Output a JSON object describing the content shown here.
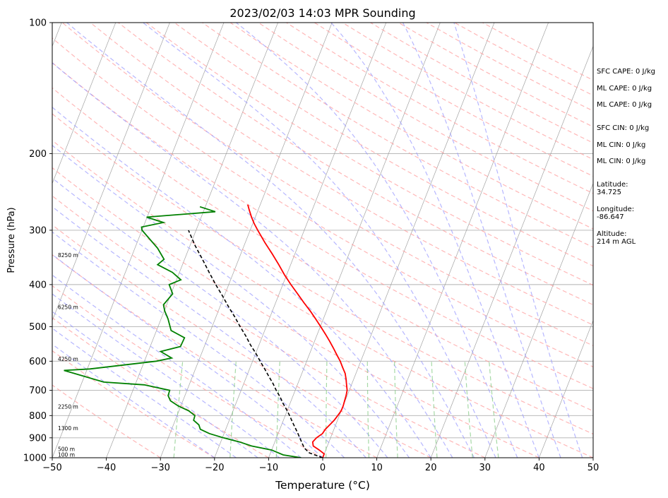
{
  "chart_data": {
    "type": "skewt",
    "title": "2023/02/03 14:03 MPR Sounding",
    "xlabel": "Temperature (°C)",
    "ylabel": "Pressure (hPa)",
    "xlim": [
      -50,
      50
    ],
    "ylim": [
      1000,
      100
    ],
    "y_scale": "log",
    "x_ticks": [
      -50,
      -40,
      -30,
      -20,
      -10,
      0,
      10,
      20,
      30,
      40,
      50
    ],
    "y_ticks": [
      100,
      200,
      300,
      400,
      500,
      600,
      700,
      800,
      900,
      1000
    ],
    "grid": "horizontal at pressure ticks",
    "colors": {
      "temperature": "#ff0000",
      "dewpoint": "#008000",
      "parcel": "#000000",
      "dry_adiabats": "#ff9999",
      "moist_adiabats": "#9999ff",
      "mixing_ratio": "#88cc88",
      "isotherms": "#999999"
    },
    "series": [
      {
        "key": "temperature",
        "p": [
          1000,
          980,
          960,
          940,
          920,
          900,
          880,
          860,
          840,
          820,
          800,
          780,
          760,
          740,
          720,
          700,
          680,
          660,
          640,
          620,
          600,
          580,
          560,
          540,
          520,
          500,
          480,
          460,
          440,
          420,
          400,
          380,
          360,
          340,
          320,
          300,
          290,
          280,
          270,
          262
        ],
        "t": [
          0.0,
          0.0,
          -1.2,
          -2.6,
          -3.0,
          -2.6,
          -1.8,
          -1.6,
          -1.1,
          -0.6,
          -0.3,
          0.0,
          0.0,
          -0.1,
          -0.2,
          -0.4,
          -0.9,
          -1.4,
          -2.0,
          -2.9,
          -3.8,
          -4.9,
          -6.0,
          -7.2,
          -8.5,
          -9.9,
          -11.4,
          -13.0,
          -14.8,
          -16.6,
          -18.5,
          -20.4,
          -22.2,
          -24.2,
          -26.4,
          -28.6,
          -29.7,
          -30.7,
          -31.6,
          -32.3
        ]
      },
      {
        "key": "dewpoint",
        "p": [
          1000,
          985,
          960,
          940,
          920,
          900,
          880,
          860,
          840,
          820,
          800,
          780,
          760,
          740,
          720,
          700,
          680,
          670,
          630,
          625,
          600,
          590,
          570,
          555,
          530,
          510,
          480,
          460,
          445,
          420,
          400,
          390,
          375,
          360,
          350,
          330,
          300,
          295,
          288,
          280,
          272,
          265
        ],
        "t": [
          -4.0,
          -7.5,
          -10.0,
          -14.0,
          -16.5,
          -19.8,
          -22.7,
          -24.7,
          -25.3,
          -26.6,
          -26.7,
          -28.2,
          -30.5,
          -32.3,
          -33.1,
          -33.2,
          -38.3,
          -46.0,
          -54.2,
          -49.5,
          -37.8,
          -35.2,
          -37.7,
          -34.4,
          -34.3,
          -37.3,
          -38.7,
          -39.9,
          -40.6,
          -39.7,
          -41.0,
          -39.2,
          -41.3,
          -44.6,
          -43.8,
          -45.8,
          -50.0,
          -50.3,
          -46.6,
          -50.1,
          -37.8,
          -41.0
        ]
      },
      {
        "key": "parcel",
        "p": [
          1000,
          975,
          950,
          925,
          900,
          875,
          850,
          825,
          800,
          775,
          750,
          725,
          700,
          675,
          650,
          625,
          600,
          575,
          550,
          525,
          500,
          475,
          450,
          425,
          400,
          375,
          350,
          325,
          300
        ],
        "t": [
          0.0,
          -2.8,
          -4.1,
          -4.9,
          -5.7,
          -6.5,
          -7.4,
          -8.3,
          -9.2,
          -10.2,
          -11.3,
          -12.3,
          -13.5,
          -14.6,
          -15.9,
          -17.2,
          -18.6,
          -20.0,
          -21.6,
          -23.1,
          -24.8,
          -26.5,
          -28.4,
          -30.3,
          -32.4,
          -34.5,
          -36.7,
          -39.1,
          -41.4
        ]
      }
    ],
    "height_labels": [
      {
        "p": 1000,
        "text": "100 m"
      },
      {
        "p": 970,
        "text": "500 m"
      },
      {
        "p": 869,
        "text": "1300 m"
      },
      {
        "p": 776,
        "text": "2250 m"
      },
      {
        "p": 603,
        "text": "4250 m"
      },
      {
        "p": 458,
        "text": "6250 m"
      },
      {
        "p": 348,
        "text": "8250 m"
      }
    ]
  },
  "info": {
    "sfc_cape": "SFC CAPE: 0 J/kg",
    "ml_cape": "ML CAPE: 0 J/kg",
    "mu_cape": "ML CAPE: 0 J/kg",
    "sfc_cin": "SFC CIN: 0 J/kg",
    "ml_cin": "ML CIN: 0 J/kg",
    "mu_cin": "ML CIN: 0 J/kg",
    "latitude_label": "Latitude:",
    "latitude_value": "34.725",
    "longitude_label": "Longitude:",
    "longitude_value": "-86.647",
    "altitude_label": "Altitude:",
    "altitude_value": "214 m AGL"
  }
}
